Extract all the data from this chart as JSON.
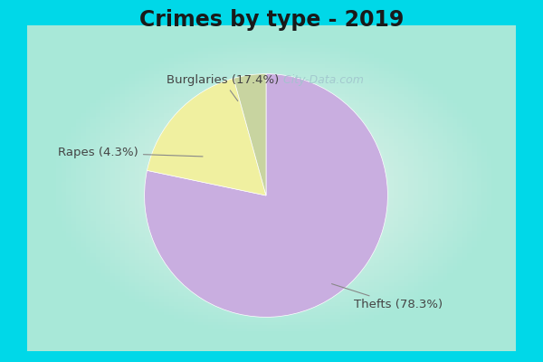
{
  "title": "Crimes by type - 2019",
  "slices": [
    {
      "label": "Thefts (78.3%)",
      "value": 78.3,
      "color": "#c9aee0"
    },
    {
      "label": "Burglaries (17.4%)",
      "value": 17.4,
      "color": "#f0f0a0"
    },
    {
      "label": "Rapes (4.3%)",
      "value": 4.3,
      "color": "#c8d4a0"
    }
  ],
  "border_color": "#00d8e8",
  "bg_center": "#e8f5e8",
  "bg_edge": "#a8e8d8",
  "title_fontsize": 17,
  "label_fontsize": 9.5,
  "watermark": "  City-Data.com",
  "watermark_color": "#a0c4cc",
  "border_width": 8
}
